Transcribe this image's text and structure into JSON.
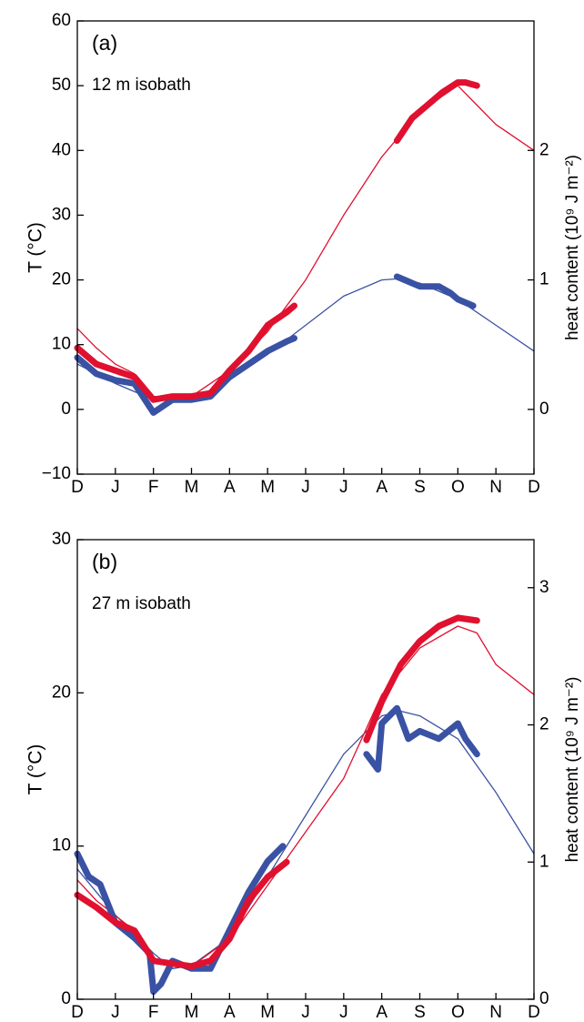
{
  "chart_data": [
    {
      "type": "line",
      "annotations": [
        "(a)",
        "12 m isobath"
      ],
      "ylabel": "T (°C)",
      "y2label": "heat content (10⁹ J m⁻²)",
      "xlim": [
        0,
        12
      ],
      "xticks": [
        {
          "value": 0,
          "label": "D"
        },
        {
          "value": 1,
          "label": "J"
        },
        {
          "value": 2,
          "label": "F"
        },
        {
          "value": 3,
          "label": "M"
        },
        {
          "value": 4,
          "label": "A"
        },
        {
          "value": 5,
          "label": "M"
        },
        {
          "value": 6,
          "label": "J"
        },
        {
          "value": 7,
          "label": "J"
        },
        {
          "value": 8,
          "label": "A"
        },
        {
          "value": 9,
          "label": "S"
        },
        {
          "value": 10,
          "label": "O"
        },
        {
          "value": 11,
          "label": "N"
        },
        {
          "value": 12,
          "label": "D"
        }
      ],
      "ylim": [
        -10,
        60
      ],
      "yticks": [
        {
          "value": -10,
          "label": "−10"
        },
        0,
        10,
        20,
        30,
        40,
        50,
        60
      ],
      "y2lim": [
        -0.5,
        3
      ],
      "y2ticks": [
        0,
        1,
        2
      ],
      "series": [
        {
          "color": "#3a52a3",
          "width": 1.3,
          "x": [
            0,
            1,
            2,
            3,
            4,
            5,
            6,
            7,
            8,
            8.5,
            9,
            10,
            11,
            12
          ],
          "values": [
            7,
            4,
            1.5,
            1.5,
            4.5,
            8.5,
            13,
            17.5,
            20,
            20.2,
            19.5,
            17,
            13,
            9
          ]
        },
        {
          "color": "#e0102f",
          "width": 1.3,
          "axis": "y2",
          "x": [
            0,
            0.5,
            1,
            1.5,
            2,
            3,
            4,
            5,
            6,
            7,
            8,
            9,
            10,
            10.5,
            11,
            12
          ],
          "values": [
            0.625,
            0.475,
            0.35,
            0.275,
            0.1,
            0.1,
            0.3,
            0.6,
            1.0,
            1.5,
            1.95,
            2.3,
            2.5,
            2.35,
            2.2,
            2.0
          ]
        },
        {
          "color": "#3a52a3",
          "width": 7,
          "x": [
            0,
            0.5,
            1,
            1.5,
            2,
            2.5,
            3,
            3.5,
            4,
            4.5,
            5,
            5.5,
            5.7,
            7,
            8.4,
            8.8,
            9,
            9.5,
            9.8,
            10,
            10.4
          ],
          "values": [
            8,
            5.5,
            4.5,
            4,
            -0.5,
            1.5,
            1.5,
            2,
            5,
            7,
            9,
            10.5,
            11,
            null,
            20.5,
            19.5,
            19,
            19,
            18,
            17,
            16
          ]
        },
        {
          "color": "#e0102f",
          "width": 7,
          "axis": "y2",
          "x": [
            0,
            0.5,
            1,
            1.5,
            2,
            2.5,
            3,
            3.5,
            4,
            4.5,
            5,
            5.5,
            5.7,
            7,
            8.4,
            8.8,
            9.2,
            9.6,
            10,
            10.2,
            10.5
          ],
          "values": [
            0.475,
            0.35,
            0.3,
            0.25,
            0.075,
            0.1,
            0.1,
            0.125,
            0.3,
            0.45,
            0.65,
            0.75,
            0.8,
            null,
            2.075,
            2.25,
            2.35,
            2.45,
            2.525,
            2.525,
            2.5
          ]
        }
      ]
    },
    {
      "type": "line",
      "annotations": [
        "(b)",
        "27 m isobath"
      ],
      "ylabel": "T (°C)",
      "y2label": "heat content (10⁹ J m⁻²)",
      "xlim": [
        0,
        12
      ],
      "xticks": [
        {
          "value": 0,
          "label": "D"
        },
        {
          "value": 1,
          "label": "J"
        },
        {
          "value": 2,
          "label": "F"
        },
        {
          "value": 3,
          "label": "M"
        },
        {
          "value": 4,
          "label": "A"
        },
        {
          "value": 5,
          "label": "M"
        },
        {
          "value": 6,
          "label": "J"
        },
        {
          "value": 7,
          "label": "J"
        },
        {
          "value": 8,
          "label": "A"
        },
        {
          "value": 9,
          "label": "S"
        },
        {
          "value": 10,
          "label": "O"
        },
        {
          "value": 11,
          "label": "N"
        },
        {
          "value": 12,
          "label": "D"
        }
      ],
      "ylim": [
        0,
        30
      ],
      "yticks": [
        0,
        10,
        20,
        30
      ],
      "y2lim": [
        0,
        3.35
      ],
      "y2ticks": [
        0,
        1,
        2,
        3
      ],
      "series": [
        {
          "color": "#3a52a3",
          "width": 1.3,
          "x": [
            0,
            1,
            2,
            2.5,
            3,
            4,
            5,
            6,
            7,
            8,
            8.5,
            9,
            10,
            11,
            12
          ],
          "values": [
            8.5,
            5.5,
            3,
            2,
            2.2,
            4,
            8,
            12,
            16,
            18.5,
            18.8,
            18.5,
            17,
            13.5,
            9.5
          ]
        },
        {
          "color": "#e0102f",
          "width": 1.3,
          "axis": "y2",
          "x": [
            0,
            0.5,
            1,
            1.5,
            2,
            3,
            4,
            5,
            6,
            7,
            8,
            9,
            10,
            10.5,
            11,
            12
          ],
          "values": [
            0.87,
            0.72,
            0.61,
            0.5,
            0.28,
            0.24,
            0.44,
            0.83,
            1.22,
            1.61,
            2.22,
            2.56,
            2.72,
            2.67,
            2.44,
            2.22
          ]
        },
        {
          "color": "#3a52a3",
          "width": 7,
          "x": [
            0,
            0.3,
            0.6,
            1,
            1.5,
            1.9,
            2,
            2.2,
            2.5,
            3,
            3.5,
            4,
            4.5,
            5,
            5.4,
            6.5,
            7.6,
            7.9,
            8,
            8.4,
            8.7,
            9,
            9.5,
            10,
            10.2,
            10.5
          ],
          "values": [
            9.5,
            8,
            7.5,
            5,
            4,
            3,
            0.5,
            1,
            2.5,
            2,
            2,
            4.5,
            7,
            9,
            10,
            null,
            16,
            15,
            18,
            19,
            17,
            17.5,
            17,
            18,
            17,
            16
          ]
        },
        {
          "color": "#e0102f",
          "width": 7,
          "axis": "y2",
          "x": [
            0,
            0.5,
            1,
            1.5,
            2,
            2.5,
            3,
            3.5,
            4,
            4.5,
            5,
            5.5,
            6.5,
            7.6,
            8,
            8.5,
            9,
            9.5,
            10,
            10.5
          ],
          "values": [
            0.76,
            0.67,
            0.56,
            0.5,
            0.28,
            0.26,
            0.24,
            0.28,
            0.44,
            0.72,
            0.89,
            1.0,
            null,
            1.89,
            2.17,
            2.44,
            2.61,
            2.72,
            2.78,
            2.76
          ]
        }
      ]
    }
  ]
}
